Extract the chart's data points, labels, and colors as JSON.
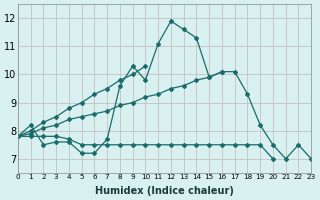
{
  "xlabel": "Humidex (Indice chaleur)",
  "ylabel": "",
  "bg_color": "#d8f0f0",
  "grid_color": "#c0b8b8",
  "line_color": "#1a6b6b",
  "xlim": [
    0,
    23
  ],
  "ylim": [
    6.5,
    12.5
  ],
  "xticks": [
    0,
    1,
    2,
    3,
    4,
    5,
    6,
    7,
    8,
    9,
    10,
    11,
    12,
    13,
    14,
    15,
    16,
    17,
    18,
    19,
    20,
    21,
    22,
    23
  ],
  "yticks": [
    7,
    8,
    9,
    10,
    11,
    12
  ],
  "series": [
    {
      "x": [
        0,
        1,
        2,
        3,
        4,
        5,
        6,
        7,
        8,
        9,
        10,
        11,
        12,
        13,
        14,
        15,
        16,
        17,
        18,
        19,
        20,
        21,
        22,
        23
      ],
      "y": [
        7.8,
        8.2,
        7.5,
        7.6,
        7.6,
        7.2,
        7.2,
        7.7,
        9.6,
        10.3,
        9.8,
        11.1,
        11.9,
        11.6,
        11.3,
        9.9,
        10.1,
        10.1,
        9.3,
        8.2,
        7.5,
        7.0,
        7.5,
        7.0
      ]
    },
    {
      "x": [
        0,
        1,
        2,
        3,
        4,
        5,
        6,
        7,
        8,
        9,
        10,
        11,
        12,
        13,
        14,
        15,
        16,
        17,
        18,
        19,
        20
      ],
      "y": [
        7.8,
        7.8,
        7.8,
        7.8,
        7.7,
        7.5,
        7.5,
        7.5,
        7.5,
        7.5,
        7.5,
        7.5,
        7.5,
        7.5,
        7.5,
        7.5,
        7.5,
        7.5,
        7.5,
        7.5,
        7.0
      ]
    },
    {
      "x": [
        0,
        1,
        2,
        3,
        4,
        5,
        6,
        7,
        8,
        9,
        10,
        11,
        12,
        13,
        14,
        15,
        16
      ],
      "y": [
        7.8,
        7.9,
        8.1,
        8.2,
        8.4,
        8.5,
        8.6,
        8.7,
        8.9,
        9.0,
        9.2,
        9.3,
        9.5,
        9.6,
        9.8,
        9.9,
        10.1
      ]
    },
    {
      "x": [
        0,
        1,
        2,
        3,
        4,
        5,
        6,
        7,
        8,
        9,
        10
      ],
      "y": [
        7.8,
        8.0,
        8.3,
        8.5,
        8.8,
        9.0,
        9.3,
        9.5,
        9.8,
        10.0,
        10.3
      ]
    }
  ]
}
